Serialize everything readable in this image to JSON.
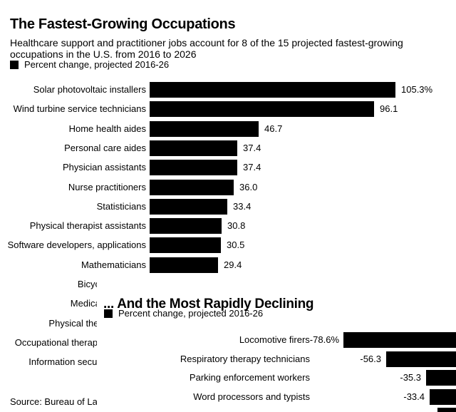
{
  "page": {
    "background": "#ffffff",
    "text_color": "#000000",
    "bar_color": "#000000"
  },
  "source_note": "Source: Bureau of Labor Statistics",
  "chart_data": [
    {
      "type": "bar",
      "orientation": "horizontal",
      "title": "The Fastest-Growing Occupations",
      "subtitle": "Healthcare support and practitioner jobs account for 8 of the 15 projected fastest-growing occupations in the U.S. from 2016 to 2026",
      "legend": [
        "Percent change, projected 2016-26"
      ],
      "legend_position": "top-left",
      "bar_color": "#000000",
      "grid": false,
      "xlim": [
        0,
        110
      ],
      "categories": [
        "Solar photovoltaic installers",
        "Wind turbine service technicians",
        "Home health aides",
        "Personal care aides",
        "Physician assistants",
        "Nurse practitioners",
        "Statisticians",
        "Physical therapist assistants",
        "Software developers, applications",
        "Mathematicians",
        "Bicycle repairers",
        "Medical assistants",
        "Physical therapist aides",
        "Occupational therapy assistants",
        "Information security analysts"
      ],
      "values": [
        105.3,
        96.1,
        46.7,
        37.4,
        37.4,
        36.0,
        33.4,
        30.8,
        30.5,
        29.4,
        null,
        null,
        null,
        null,
        null
      ],
      "value_labels": [
        "105.3%",
        "96.1",
        "46.7",
        "37.4",
        "37.4",
        "36.0",
        "33.4",
        "30.8",
        "30.5",
        "29.4",
        null,
        null,
        null,
        null,
        null
      ],
      "note": "Rows 11-15 are mostly hidden behind the overlapping second chart; only label fragments are visible (Bicy, Medic, Physical th, Occupational therap, Information secu) and their bars/values are not visible."
    },
    {
      "type": "bar",
      "orientation": "horizontal",
      "title": "... And the Most Rapidly Declining",
      "legend": [
        "Percent change, projected 2016-26"
      ],
      "legend_position": "top-left",
      "bar_color": "#000000",
      "grid": false,
      "categories": [
        "Locomotive firers",
        "Respiratory therapy technicians",
        "Parking enforcement workers",
        "Word processors and typists"
      ],
      "values": [
        -78.6,
        -56.3,
        -35.3,
        -33.4
      ],
      "value_labels": [
        "-78.6%",
        "-56.3",
        "-35.3",
        "-33.4"
      ],
      "first_row_value_fused_with_label": true,
      "partial_fifth_bar_visible": true,
      "note": "Negative bars grow leftward from a zero axis located beyond the right edge of the image; bars and a fifth partial row are clipped by the image crop."
    }
  ]
}
